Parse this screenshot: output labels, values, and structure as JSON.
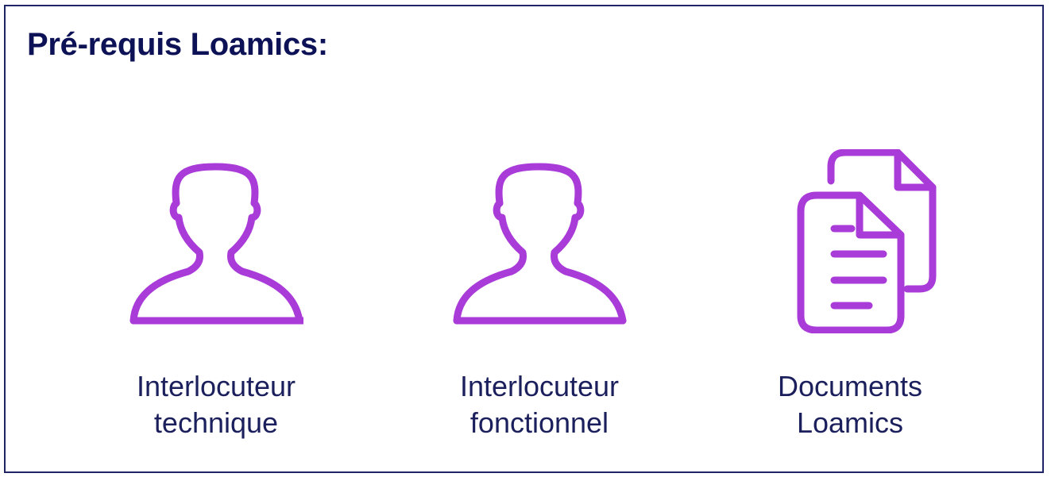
{
  "title": "Pré-requis Loamics:",
  "colors": {
    "accent": "#A93BD8",
    "title": "#0D1257",
    "label": "#1B1F5C",
    "border": "#1E2466"
  },
  "items": [
    {
      "icon": "person-icon",
      "label_line1": "Interlocuteur",
      "label_line2": "technique"
    },
    {
      "icon": "person-icon",
      "label_line1": "Interlocuteur",
      "label_line2": "fonctionnel"
    },
    {
      "icon": "documents-icon",
      "label_line1": "Documents",
      "label_line2": "Loamics"
    }
  ]
}
